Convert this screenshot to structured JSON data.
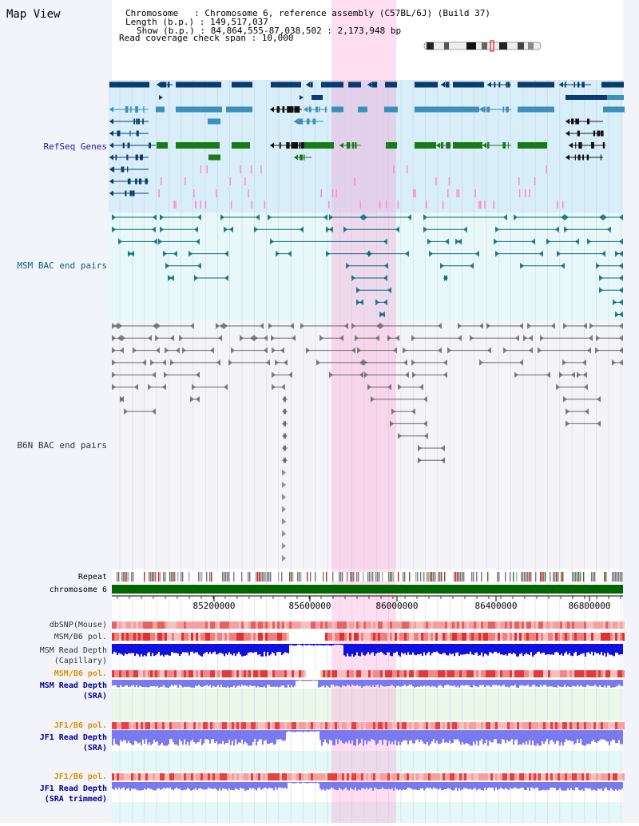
{
  "header": {
    "title": "Map View",
    "info_lines": [
      "Chromosome   : Chromosome 6, reference assembly (C57BL/6J) (Build 37)",
      "Length (b.p.) : 149,517,037",
      "Show (b.p.) : 84,864,555-87,038,502 : 2,173,948 bp",
      "Read coverage check span : 10,000"
    ]
  },
  "tracks": {
    "refseq": {
      "label": "RefSeq Genes",
      "color": "#1a1aa0"
    },
    "msm_bac": {
      "label": "MSM BAC end pairs",
      "color": "#006680"
    },
    "b6n_bac": {
      "label": "B6N BAC end pairs",
      "color": "#333333"
    },
    "repeat": {
      "label": "Repeat"
    },
    "chromosome": {
      "label": "chromosome 6"
    },
    "dbsnp": {
      "label": "dbSNP(Mouse)"
    },
    "msm_b6_pol_cap": {
      "label": "MSM/B6 pol."
    },
    "msm_depth_cap": {
      "label1": "MSM Read Depth",
      "label2": "(Capillary)"
    },
    "msm_b6_pol_sra": {
      "label": "MSM/B6 pol."
    },
    "msm_depth_sra": {
      "label1": "MSM Read Depth",
      "label2": "(SRA)"
    },
    "jf1_b6_pol": {
      "label": "JF1/B6 pol."
    },
    "jf1_depth_sra": {
      "label1": "JF1 Read Depth",
      "label2": "(SRA)"
    },
    "jf1_b6_pol_trim": {
      "label": "JF1/B6 pol."
    },
    "jf1_depth_trim": {
      "label1": "JF1 Read Depth",
      "label2": "(SRA trimmed)"
    }
  },
  "axis": {
    "ticks": [
      "85200000",
      "85600000",
      "86000000",
      "86400000",
      "86800000"
    ]
  },
  "highlight": {
    "start": 85690000,
    "end": 85960000,
    "color": "#ff88cc"
  },
  "colors": {
    "refseq_dark": "#0a3a6e",
    "refseq_mid": "#3b8fb8",
    "refseq_green": "#1a7a1a",
    "refseq_pink": "#ff88cc",
    "msm_bac": "#006680",
    "b6n_bac": "#666666",
    "chromosome": "#006600",
    "depth_cap": "#1010e0",
    "depth_sra": "#7a7af0",
    "label_orange": "#e09000",
    "label_blue": "#000099"
  }
}
